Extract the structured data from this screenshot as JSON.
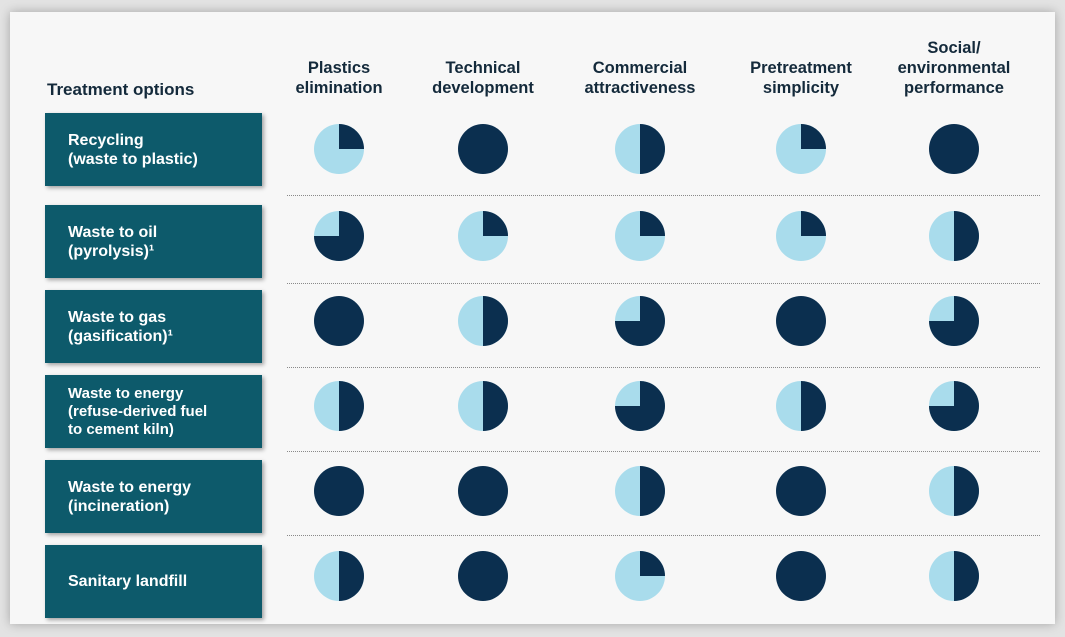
{
  "header": {
    "row_label": "Treatment options",
    "columns": [
      "Plastics\nelimination",
      "Technical\ndevelopment",
      "Commercial\nattractiveness",
      "Pretreatment\nsimplicity",
      "Social/\nenvironmental\nperformance"
    ]
  },
  "options": [
    {
      "label": "Recycling\n(waste to plastic)",
      "ratings": [
        0.25,
        1,
        0.5,
        0.25,
        1
      ]
    },
    {
      "label": "Waste to oil\n(pyrolysis)¹",
      "ratings": [
        0.75,
        0.25,
        0.25,
        0.25,
        0.5
      ]
    },
    {
      "label": "Waste to gas\n(gasification)¹",
      "ratings": [
        1,
        0.5,
        0.75,
        1,
        0.75
      ]
    },
    {
      "label": "Waste to energy\n(refuse-derived fuel\nto cement kiln)",
      "ratings": [
        0.5,
        0.5,
        0.75,
        0.5,
        0.75
      ]
    },
    {
      "label": "Waste to energy\n(incineration)",
      "ratings": [
        1,
        1,
        0.5,
        1,
        0.5
      ]
    },
    {
      "label": "Sanitary landfill",
      "ratings": [
        0.5,
        1,
        0.25,
        1,
        0.5
      ]
    }
  ],
  "colors": {
    "filled": "#0b2f4f",
    "empty": "#a9dcec",
    "box": "#0d5a6b"
  }
}
